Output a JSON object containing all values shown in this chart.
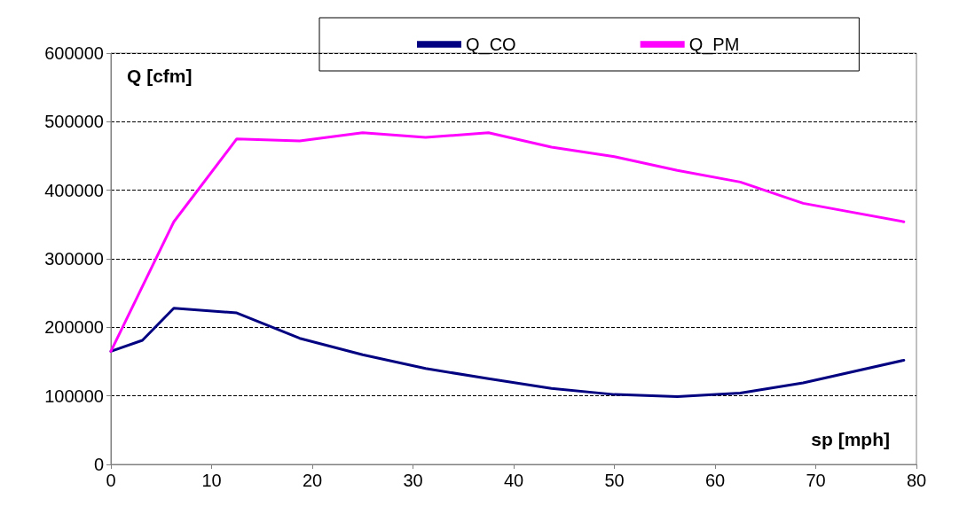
{
  "chart_data": {
    "type": "line",
    "xlabel": "sp [mph]",
    "ylabel": "Q [cfm]",
    "xlim": [
      0,
      80
    ],
    "xticks": [
      0,
      10,
      20,
      30,
      40,
      50,
      60,
      70,
      80
    ],
    "ylim": [
      0,
      600000
    ],
    "yticks": [
      0,
      100000,
      200000,
      300000,
      400000,
      500000,
      600000
    ],
    "grid": "y",
    "legend": "top",
    "marker": "none",
    "line_style": "solid",
    "series": [
      {
        "name": "Q_CO",
        "color": "#000080",
        "x": [
          0,
          3.125,
          6.25,
          12.5,
          18.75,
          25,
          31.25,
          37.5,
          43.75,
          50,
          56.25,
          62.5,
          68.75,
          78.75
        ],
        "values": [
          165000,
          181000,
          228000,
          221000,
          184000,
          160000,
          140000,
          125000,
          111000,
          102000,
          99000,
          104000,
          119000,
          152000
        ]
      },
      {
        "name": "Q_PM",
        "color": "#ff00ff",
        "x": [
          0,
          6.25,
          12.5,
          18.75,
          25,
          31.25,
          37.5,
          43.75,
          50,
          56.25,
          62.5,
          68.75,
          78.75
        ],
        "values": [
          165000,
          354000,
          475000,
          472000,
          484000,
          477000,
          484000,
          463000,
          449000,
          429000,
          412000,
          381000,
          354000
        ]
      }
    ]
  }
}
